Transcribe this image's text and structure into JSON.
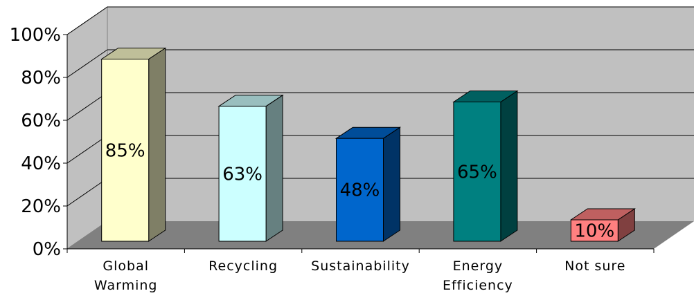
{
  "chart_data": {
    "type": "bar",
    "style": "3d-column",
    "categories": [
      [
        "Global",
        "Warming"
      ],
      [
        "Recycling"
      ],
      [
        "Sustainability"
      ],
      [
        "Energy",
        "Efficiency"
      ],
      [
        "Not sure"
      ]
    ],
    "values": [
      85,
      63,
      48,
      65,
      10
    ],
    "data_labels": [
      "85%",
      "63%",
      "48%",
      "65%",
      "10%"
    ],
    "y_ticks": [
      "0%",
      "20%",
      "40%",
      "60%",
      "80%",
      "100%"
    ],
    "ylim": [
      0,
      100
    ],
    "grid": true,
    "legend": "none",
    "colors": {
      "bars": [
        {
          "front": "#FFFFCC",
          "side": "#7F7F66",
          "top": "#BFBF99"
        },
        {
          "front": "#CCFFFF",
          "side": "#668080",
          "top": "#99BFBF"
        },
        {
          "front": "#0066CC",
          "side": "#003366",
          "top": "#004D99"
        },
        {
          "front": "#008080",
          "side": "#004040",
          "top": "#006060"
        },
        {
          "front": "#FF8080",
          "side": "#804040",
          "top": "#BF6060"
        }
      ],
      "wall": "#C0C0C0",
      "floor": "#808080",
      "gridline": "#000000"
    }
  }
}
